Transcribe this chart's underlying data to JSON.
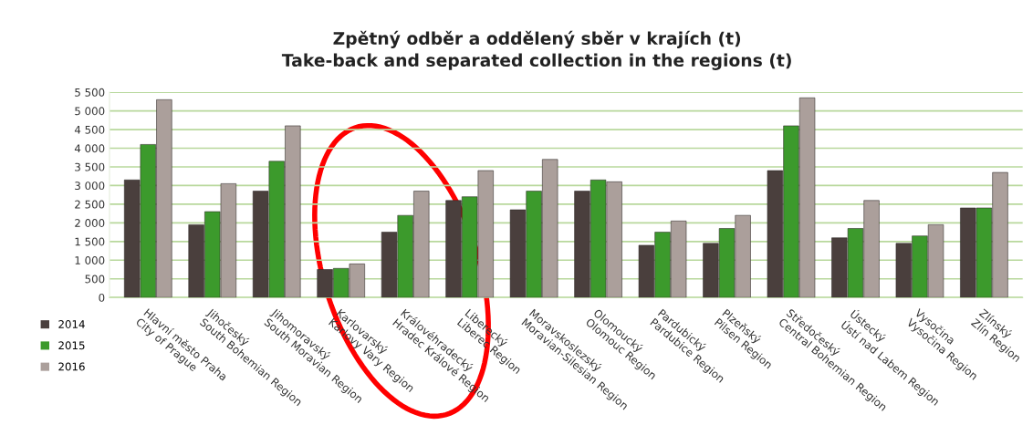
{
  "chart_data": {
    "type": "bar",
    "title": "Zpětný odběr a oddělený sběr v krajích (t)\nTake-back and separated collection in the regions (t)",
    "categories": [
      "Hlavní město Praha\nCity of Prague",
      "Jihočeský\nSouth Bohemian Region",
      "Jihomoravský\nSouth Moravian Region",
      "Karlovarský\nKarlovy Vary Region",
      "Královéhradecký\nHradec Králové Region",
      "Liberecký\nLiberec Region",
      "Moravskoslezský\nMoravian-Silesian Region",
      "Olomoucký\nOlomouc Region",
      "Pardubický\nPardubice Region",
      "Plzeňský\nPilsen Region",
      "Středočeský\nCentral Bohemian Region",
      "Ústecký\nÚstí nad Labem Region",
      "Vysočina\nVysočina Region",
      "Zlínský\nZlín Region"
    ],
    "series": [
      {
        "name": "2014",
        "color": "#4a3f3d",
        "values": [
          3150,
          1950,
          2850,
          750,
          1750,
          2600,
          2350,
          2850,
          1400,
          1450,
          3400,
          1600,
          1450,
          2400
        ]
      },
      {
        "name": "2015",
        "color": "#3c9a2c",
        "values": [
          4100,
          2300,
          3650,
          780,
          2200,
          2700,
          2850,
          3150,
          1750,
          1850,
          4600,
          1850,
          1650,
          2400
        ]
      },
      {
        "name": "2016",
        "color": "#ab9f9b",
        "values": [
          5300,
          3050,
          4600,
          900,
          2850,
          3400,
          3700,
          3100,
          2050,
          2200,
          5350,
          2600,
          1950,
          3350
        ]
      }
    ],
    "ylim": [
      0,
      5500
    ],
    "yticks": [
      0,
      500,
      {
        "value": 1000,
        "label": "1 000"
      },
      {
        "value": 1500,
        "label": "1 500"
      },
      {
        "value": 2000,
        "label": "2 000"
      },
      {
        "value": 2500,
        "label": "2 500"
      },
      {
        "value": 3000,
        "label": "3 000"
      },
      {
        "value": 3500,
        "label": "3 500"
      },
      {
        "value": 4000,
        "label": "4 000"
      },
      {
        "value": 4500,
        "label": "4 500"
      },
      {
        "value": 5000,
        "label": "5 000"
      },
      {
        "value": 5500,
        "label": "5 500"
      }
    ],
    "grid": "y",
    "legend": "bottom left"
  }
}
